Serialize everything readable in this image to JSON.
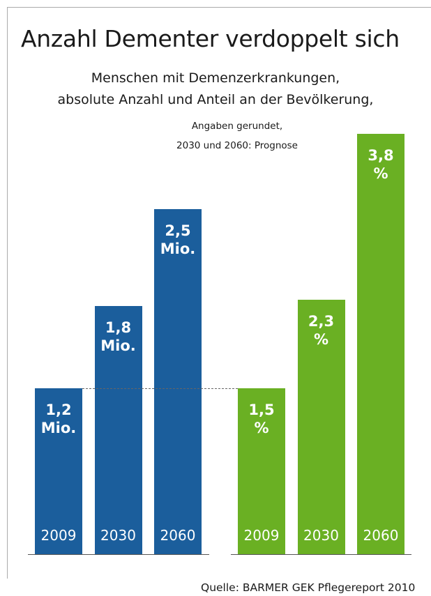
{
  "title": "Anzahl Dementer verdoppelt sich",
  "subtitle": [
    "Menschen mit Demenzerkrankungen,",
    "absolute Anzahl und Anteil an der Bevölkerung,"
  ],
  "note": [
    "Angaben gerundet,",
    "2030 und 2060: Prognose"
  ],
  "source": "Quelle: BARMER GEK Pflegereport 2010",
  "chart_data": [
    {
      "type": "bar",
      "categories": [
        "2009",
        "2030",
        "2060"
      ],
      "values": [
        1.2,
        1.8,
        2.5
      ],
      "value_labels": [
        "1,2\nMio.",
        "1,8\nMio.",
        "2,5\nMio."
      ],
      "color": "#1b5e9c"
    },
    {
      "type": "bar",
      "categories": [
        "2009",
        "2030",
        "2060"
      ],
      "values": [
        1.5,
        2.3,
        3.8
      ],
      "value_labels": [
        "1,5\n%",
        "2,3\n%",
        "3,8\n%"
      ],
      "color": "#6ab023"
    }
  ]
}
